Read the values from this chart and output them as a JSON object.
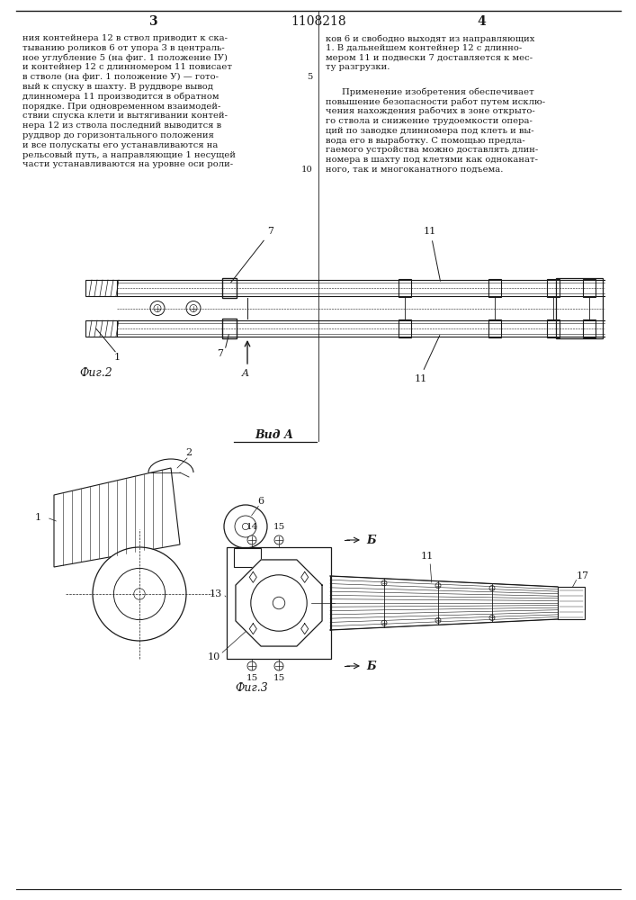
{
  "page_number_left": "3",
  "page_number_right": "4",
  "patent_number": "1108218",
  "text_col1": "ния контейнера 12 в ствол приводит к ска-\nтыванию роликов 6 от упора 3 в централь-\nное углубление 5 (на фиг. 1 положение IУ)\nи контейнер 12 с длинномером 11 повисает\nв стволе (на фиг. 1 положение У) — гото-\nвый к спуску в шахту. В руддворе вывод\nдлинномера 11 производится в обратном\nпорядке. При одновременном взаимодей-\nствии спуска клети и вытягивании контей-\nнера 12 из ствола последний выводится в\nруддвор до горизонтального положения\nи все полускаты его устанавливаются на\nрельсовый путь, а направляющие 1 несущей\nчасти устанавливаются на уровне оси роли-",
  "text_col1_para": "",
  "text_col2_para1": "ков 6 и свободно выходят из направляющих\n1. В дальнейшем контейнер 12 с длинно-\nмером 11 и подвески 7 доставляется к мес-\nту разгрузки.",
  "text_col2_para2": "Применение изобретения обеспечивает\nповышение безопасности работ путем исклю-\nчения нахождения рабочих в зоне открыто-\nго ствола и снижение трудоемкости опера-\nций по заводке длинномера под клеть и вы-\nвода его в выработку. С помощью предла-\nгаемого устройства можно доставлять длин-\nномера в шахту под клетями как одноканат-\nного, так и многоканатного подъема.",
  "fig2_label": "Фиг.2",
  "fig3_label": "Фиг.3",
  "vid_a_label": "Вид А",
  "section_bb_label": "Б",
  "para_num_5": "5",
  "para_num_10": "10",
  "background_color": "#ffffff",
  "line_color": "#1a1a1a",
  "text_color": "#1a1a1a"
}
